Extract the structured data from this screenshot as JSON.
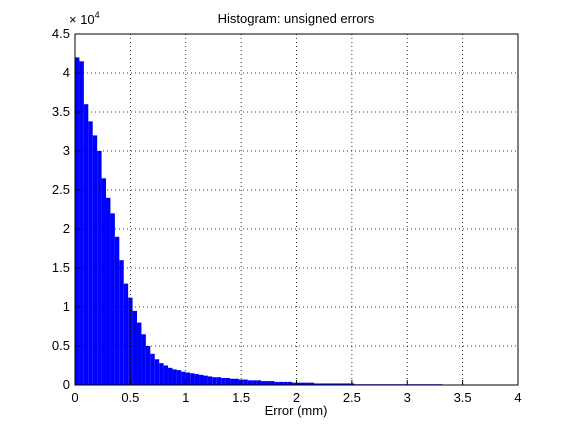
{
  "chart_data": {
    "type": "histogram",
    "title": "Histogram: unsigned errors",
    "x_label": "Error (mm)",
    "y_multiplier": {
      "base": "× 10",
      "exponent": "4"
    },
    "color": "#0000ff",
    "grid": true,
    "xlim": [
      0,
      4
    ],
    "xticks": [
      0,
      0.5,
      1,
      1.5,
      2,
      2.5,
      3,
      3.5,
      4
    ],
    "ylim": [
      0,
      4.5
    ],
    "yticks": [
      0,
      0.5,
      1,
      1.5,
      2,
      2.5,
      3,
      3.5,
      4,
      4.5
    ],
    "bins": [
      0,
      0.04,
      0.08,
      0.12,
      0.16,
      0.2,
      0.24,
      0.28,
      0.32,
      0.36,
      0.4,
      0.44,
      0.48,
      0.52,
      0.56,
      0.6,
      0.64,
      0.68,
      0.72,
      0.76,
      0.8,
      0.84,
      0.88,
      0.92,
      0.96,
      1,
      1.04,
      1.08,
      1.12,
      1.16,
      1.2,
      1.24,
      1.28,
      1.32,
      1.36,
      1.4,
      1.44,
      1.48,
      1.52,
      1.56,
      1.6,
      1.64,
      1.68,
      1.72,
      1.76,
      1.8,
      1.84,
      1.88,
      1.92,
      1.96,
      2,
      2.04,
      2.08,
      2.12,
      2.16,
      2.2,
      2.24,
      2.28,
      2.32,
      2.36,
      2.4,
      2.44,
      2.48,
      2.52,
      2.56,
      2.6,
      2.64,
      2.68,
      2.72,
      2.76,
      2.8,
      2.84,
      2.88,
      2.92,
      2.96,
      3,
      3.04,
      3.08,
      3.12,
      3.16,
      3.2,
      3.24,
      3.28,
      3.32
    ],
    "values": [
      4.2,
      4.15,
      3.6,
      3.38,
      3.2,
      3.0,
      2.65,
      2.4,
      2.2,
      1.9,
      1.6,
      1.3,
      1.12,
      0.95,
      0.8,
      0.65,
      0.5,
      0.4,
      0.33,
      0.28,
      0.25,
      0.22,
      0.2,
      0.19,
      0.17,
      0.16,
      0.15,
      0.14,
      0.13,
      0.12,
      0.11,
      0.1,
      0.1,
      0.09,
      0.09,
      0.08,
      0.08,
      0.07,
      0.07,
      0.06,
      0.06,
      0.06,
      0.05,
      0.05,
      0.05,
      0.04,
      0.04,
      0.04,
      0.04,
      0.03,
      0.03,
      0.03,
      0.03,
      0.03,
      0.02,
      0.02,
      0.02,
      0.02,
      0.02,
      0.02,
      0.02,
      0.02,
      0.02,
      0.01,
      0.01,
      0.01,
      0.01,
      0.01,
      0.01,
      0.01,
      0.01,
      0.01,
      0.01,
      0.01,
      0.01,
      0.01,
      0.01,
      0.01,
      0.01,
      0.01,
      0.01,
      0.01,
      0.01
    ]
  }
}
